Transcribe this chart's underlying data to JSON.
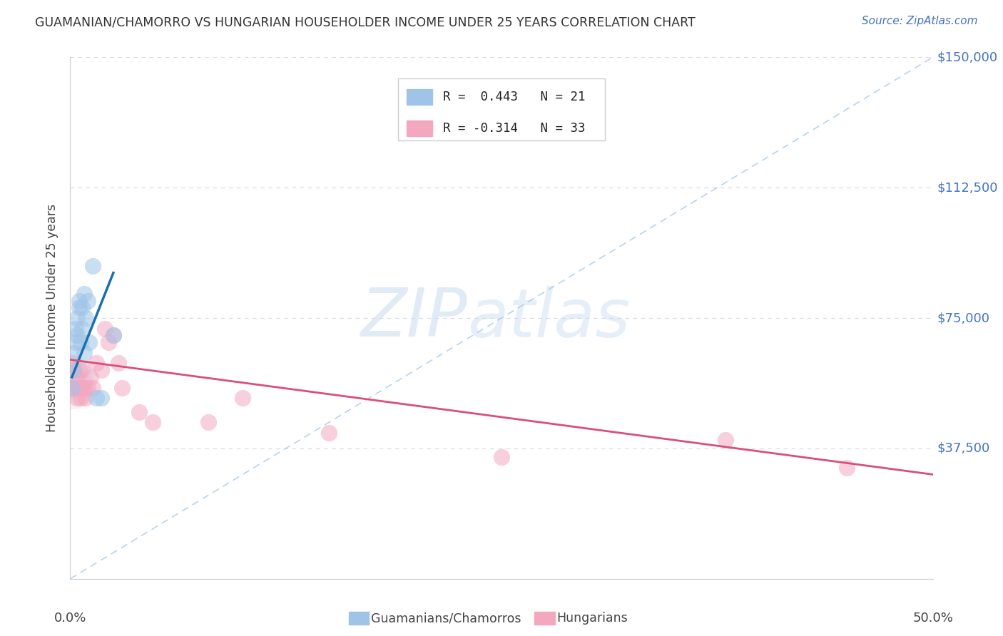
{
  "title": "GUAMANIAN/CHAMORRO VS HUNGARIAN HOUSEHOLDER INCOME UNDER 25 YEARS CORRELATION CHART",
  "source": "Source: ZipAtlas.com",
  "ylabel": "Householder Income Under 25 years",
  "legend_label1": "Guamanians/Chamorros",
  "legend_label2": "Hungarians",
  "R1": 0.443,
  "N1": 21,
  "R2": -0.314,
  "N2": 33,
  "blue_color": "#a0c4e8",
  "pink_color": "#f4a8c0",
  "blue_line_color": "#1a6faf",
  "pink_line_color": "#d94f7a",
  "dash_color": "#a8c8e8",
  "watermark_zip": "ZIP",
  "watermark_atlas": "atlas",
  "xlim": [
    0.0,
    0.5
  ],
  "ylim": [
    0,
    150000
  ],
  "yticks": [
    0,
    37500,
    75000,
    112500,
    150000
  ],
  "ytick_labels": [
    "",
    "$37,500",
    "$75,000",
    "$112,500",
    "$150,000"
  ],
  "accent_color": "#4472c4",
  "background_color": "#ffffff",
  "grid_color": "#d8d8e0",
  "guam_x": [
    0.001,
    0.002,
    0.002,
    0.003,
    0.003,
    0.004,
    0.004,
    0.005,
    0.005,
    0.006,
    0.007,
    0.007,
    0.008,
    0.008,
    0.009,
    0.01,
    0.011,
    0.013,
    0.015,
    0.018,
    0.025
  ],
  "guam_y": [
    55000,
    60000,
    65000,
    68000,
    72000,
    70000,
    75000,
    78000,
    80000,
    68000,
    72000,
    78000,
    65000,
    82000,
    75000,
    80000,
    68000,
    90000,
    52000,
    52000,
    70000
  ],
  "hung_x": [
    0.001,
    0.002,
    0.002,
    0.003,
    0.003,
    0.004,
    0.004,
    0.005,
    0.005,
    0.006,
    0.006,
    0.007,
    0.007,
    0.008,
    0.009,
    0.01,
    0.012,
    0.013,
    0.015,
    0.018,
    0.02,
    0.022,
    0.025,
    0.028,
    0.03,
    0.04,
    0.048,
    0.08,
    0.1,
    0.15,
    0.25,
    0.38,
    0.45
  ],
  "hung_y": [
    62000,
    60000,
    55000,
    55000,
    58000,
    52000,
    58000,
    55000,
    60000,
    52000,
    55000,
    60000,
    55000,
    55000,
    52000,
    55000,
    58000,
    55000,
    62000,
    60000,
    72000,
    68000,
    70000,
    62000,
    55000,
    48000,
    45000,
    45000,
    52000,
    42000,
    35000,
    40000,
    32000
  ],
  "blue_trend_x": [
    0.001,
    0.025
  ],
  "blue_trend_y": [
    58000,
    88000
  ],
  "pink_trend_x": [
    0.0,
    0.5
  ],
  "pink_trend_y": [
    63000,
    30000
  ]
}
